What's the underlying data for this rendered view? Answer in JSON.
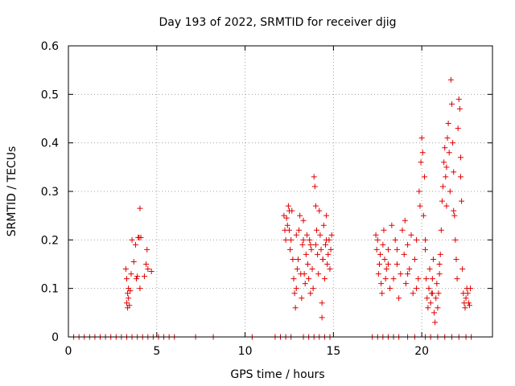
{
  "chart_data": {
    "type": "scatter",
    "title": "Day 193 of 2022, SRMTID for receiver djig",
    "xlabel": "GPS time / hours",
    "ylabel": "SRMTID / TECUs",
    "xlim": [
      0,
      24
    ],
    "ylim": [
      0,
      0.6
    ],
    "x_ticks": [
      0,
      5,
      10,
      15,
      20
    ],
    "y_ticks": [
      0,
      0.1,
      0.2,
      0.3,
      0.4,
      0.5,
      0.6
    ],
    "x_tick_labels": [
      "0",
      "5",
      "10",
      "15",
      "20"
    ],
    "y_tick_labels": [
      "0",
      "0.1",
      "0.2",
      "0.3",
      "0.4",
      "0.5",
      "0.6"
    ],
    "grid": true,
    "marker": "+",
    "color": "#e00000",
    "series": [
      {
        "name": "SRMTID",
        "points": [
          [
            0.3,
            0
          ],
          [
            0.6,
            0
          ],
          [
            0.9,
            0
          ],
          [
            1.2,
            0
          ],
          [
            1.5,
            0
          ],
          [
            1.8,
            0
          ],
          [
            2.1,
            0
          ],
          [
            2.4,
            0
          ],
          [
            2.7,
            0
          ],
          [
            3.0,
            0
          ],
          [
            3.3,
            0
          ],
          [
            3.6,
            0
          ],
          [
            3.9,
            0
          ],
          [
            4.2,
            0
          ],
          [
            4.5,
            0
          ],
          [
            4.8,
            0
          ],
          [
            5.1,
            0
          ],
          [
            5.4,
            0
          ],
          [
            5.7,
            0
          ],
          [
            6.0,
            0
          ],
          [
            7.2,
            0
          ],
          [
            8.2,
            0
          ],
          [
            10.4,
            0
          ],
          [
            11.7,
            0
          ],
          [
            12.0,
            0
          ],
          [
            12.3,
            0
          ],
          [
            12.6,
            0
          ],
          [
            13.3,
            0
          ],
          [
            13.6,
            0
          ],
          [
            13.9,
            0
          ],
          [
            14.2,
            0
          ],
          [
            14.5,
            0
          ],
          [
            14.8,
            0
          ],
          [
            17.2,
            0
          ],
          [
            17.5,
            0
          ],
          [
            17.8,
            0
          ],
          [
            18.1,
            0
          ],
          [
            18.4,
            0
          ],
          [
            18.7,
            0
          ],
          [
            19.2,
            0
          ],
          [
            19.6,
            0
          ],
          [
            20.2,
            0
          ],
          [
            20.5,
            0
          ],
          [
            20.9,
            0
          ],
          [
            21.3,
            0
          ],
          [
            21.7,
            0
          ],
          [
            22.1,
            0
          ],
          [
            22.5,
            0
          ],
          [
            22.8,
            0
          ],
          [
            3.25,
            0.14
          ],
          [
            3.3,
            0.12
          ],
          [
            3.3,
            0.07
          ],
          [
            3.35,
            0.09
          ],
          [
            3.35,
            0.06
          ],
          [
            3.4,
            0.08
          ],
          [
            3.4,
            0.1
          ],
          [
            3.45,
            0.065
          ],
          [
            3.5,
            0.095
          ],
          [
            3.55,
            0.13
          ],
          [
            3.6,
            0.2
          ],
          [
            3.7,
            0.155
          ],
          [
            3.8,
            0.19
          ],
          [
            3.85,
            0.12
          ],
          [
            3.9,
            0.125
          ],
          [
            3.95,
            0.205
          ],
          [
            4.0,
            0.205
          ],
          [
            4.05,
            0.1
          ],
          [
            4.05,
            0.265
          ],
          [
            4.1,
            0.205
          ],
          [
            4.3,
            0.125
          ],
          [
            4.4,
            0.15
          ],
          [
            4.45,
            0.18
          ],
          [
            4.5,
            0.14
          ],
          [
            4.7,
            0.135
          ],
          [
            12.2,
            0.25
          ],
          [
            12.25,
            0.22
          ],
          [
            12.3,
            0.2
          ],
          [
            12.35,
            0.245
          ],
          [
            12.4,
            0.23
          ],
          [
            12.45,
            0.27
          ],
          [
            12.5,
            0.26
          ],
          [
            12.55,
            0.18
          ],
          [
            12.6,
            0.2
          ],
          [
            12.65,
            0.26
          ],
          [
            12.7,
            0.16
          ],
          [
            12.75,
            0.12
          ],
          [
            12.8,
            0.09
          ],
          [
            12.85,
            0.06
          ],
          [
            12.9,
            0.1
          ],
          [
            12.95,
            0.14
          ],
          [
            13.0,
            0.16
          ],
          [
            13.05,
            0.22
          ],
          [
            13.1,
            0.25
          ],
          [
            13.15,
            0.13
          ],
          [
            13.2,
            0.08
          ],
          [
            13.25,
            0.19
          ],
          [
            13.3,
            0.24
          ],
          [
            13.35,
            0.13
          ],
          [
            13.4,
            0.11
          ],
          [
            13.45,
            0.17
          ],
          [
            13.5,
            0.21
          ],
          [
            13.55,
            0.15
          ],
          [
            13.6,
            0.12
          ],
          [
            13.65,
            0.2
          ],
          [
            13.7,
            0.09
          ],
          [
            13.75,
            0.18
          ],
          [
            13.8,
            0.14
          ],
          [
            13.85,
            0.1
          ],
          [
            13.9,
            0.33
          ],
          [
            13.95,
            0.31
          ],
          [
            14.0,
            0.27
          ],
          [
            14.05,
            0.22
          ],
          [
            14.1,
            0.17
          ],
          [
            14.15,
            0.13
          ],
          [
            14.2,
            0.26
          ],
          [
            14.25,
            0.21
          ],
          [
            14.3,
            0.18
          ],
          [
            14.35,
            0.07
          ],
          [
            14.35,
            0.04
          ],
          [
            14.4,
            0.16
          ],
          [
            14.45,
            0.23
          ],
          [
            14.5,
            0.12
          ],
          [
            14.55,
            0.19
          ],
          [
            14.6,
            0.2
          ],
          [
            14.65,
            0.15
          ],
          [
            14.7,
            0.17
          ],
          [
            14.75,
            0.2
          ],
          [
            14.8,
            0.14
          ],
          [
            14.85,
            0.18
          ],
          [
            14.9,
            0.21
          ],
          [
            12.5,
            0.22
          ],
          [
            12.9,
            0.21
          ],
          [
            13.3,
            0.2
          ],
          [
            13.7,
            0.19
          ],
          [
            14.0,
            0.19
          ],
          [
            14.4,
            0.16
          ],
          [
            14.6,
            0.25
          ],
          [
            17.4,
            0.21
          ],
          [
            17.45,
            0.18
          ],
          [
            17.5,
            0.2
          ],
          [
            17.55,
            0.13
          ],
          [
            17.6,
            0.15
          ],
          [
            17.65,
            0.17
          ],
          [
            17.7,
            0.11
          ],
          [
            17.75,
            0.09
          ],
          [
            17.8,
            0.19
          ],
          [
            17.85,
            0.22
          ],
          [
            17.9,
            0.16
          ],
          [
            17.95,
            0.12
          ],
          [
            18.0,
            0.14
          ],
          [
            18.1,
            0.18
          ],
          [
            18.2,
            0.1
          ],
          [
            18.3,
            0.23
          ],
          [
            18.4,
            0.12
          ],
          [
            18.5,
            0.2
          ],
          [
            18.6,
            0.15
          ],
          [
            18.7,
            0.08
          ],
          [
            18.8,
            0.13
          ],
          [
            18.9,
            0.22
          ],
          [
            19.0,
            0.17
          ],
          [
            19.05,
            0.24
          ],
          [
            19.1,
            0.11
          ],
          [
            19.2,
            0.19
          ],
          [
            19.3,
            0.14
          ],
          [
            19.4,
            0.21
          ],
          [
            19.5,
            0.09
          ],
          [
            19.6,
            0.16
          ],
          [
            19.7,
            0.2
          ],
          [
            19.8,
            0.12
          ],
          [
            19.85,
            0.3
          ],
          [
            19.9,
            0.27
          ],
          [
            19.95,
            0.36
          ],
          [
            20.0,
            0.41
          ],
          [
            20.05,
            0.38
          ],
          [
            20.1,
            0.25
          ],
          [
            20.15,
            0.33
          ],
          [
            20.2,
            0.18
          ],
          [
            20.25,
            0.12
          ],
          [
            20.3,
            0.08
          ],
          [
            20.35,
            0.06
          ],
          [
            20.4,
            0.1
          ],
          [
            20.45,
            0.14
          ],
          [
            20.5,
            0.07
          ],
          [
            20.55,
            0.09
          ],
          [
            20.6,
            0.12
          ],
          [
            20.65,
            0.16
          ],
          [
            20.7,
            0.05
          ],
          [
            20.75,
            0.03
          ],
          [
            20.8,
            0.08
          ],
          [
            20.85,
            0.11
          ],
          [
            20.9,
            0.06
          ],
          [
            20.95,
            0.09
          ],
          [
            21.0,
            0.13
          ],
          [
            21.05,
            0.17
          ],
          [
            21.1,
            0.22
          ],
          [
            21.15,
            0.28
          ],
          [
            21.2,
            0.31
          ],
          [
            21.25,
            0.36
          ],
          [
            21.3,
            0.39
          ],
          [
            21.35,
            0.33
          ],
          [
            21.4,
            0.27
          ],
          [
            21.45,
            0.41
          ],
          [
            21.5,
            0.44
          ],
          [
            21.55,
            0.38
          ],
          [
            21.6,
            0.3
          ],
          [
            21.65,
            0.53
          ],
          [
            21.7,
            0.48
          ],
          [
            21.75,
            0.4
          ],
          [
            21.8,
            0.34
          ],
          [
            21.85,
            0.25
          ],
          [
            21.9,
            0.2
          ],
          [
            21.95,
            0.16
          ],
          [
            22.0,
            0.12
          ],
          [
            22.05,
            0.43
          ],
          [
            22.1,
            0.49
          ],
          [
            22.15,
            0.47
          ],
          [
            22.2,
            0.33
          ],
          [
            22.25,
            0.28
          ],
          [
            22.3,
            0.14
          ],
          [
            22.35,
            0.09
          ],
          [
            22.4,
            0.07
          ],
          [
            22.45,
            0.06
          ],
          [
            22.5,
            0.08
          ],
          [
            22.55,
            0.1
          ],
          [
            22.6,
            0.09
          ],
          [
            22.65,
            0.07
          ],
          [
            22.7,
            0.065
          ],
          [
            22.75,
            0.1
          ],
          [
            18.1,
            0.15
          ],
          [
            18.6,
            0.18
          ],
          [
            19.2,
            0.13
          ],
          [
            19.7,
            0.1
          ],
          [
            20.2,
            0.2
          ],
          [
            20.6,
            0.09
          ],
          [
            21.0,
            0.15
          ],
          [
            21.4,
            0.35
          ],
          [
            21.8,
            0.26
          ],
          [
            22.2,
            0.37
          ]
        ]
      }
    ]
  }
}
